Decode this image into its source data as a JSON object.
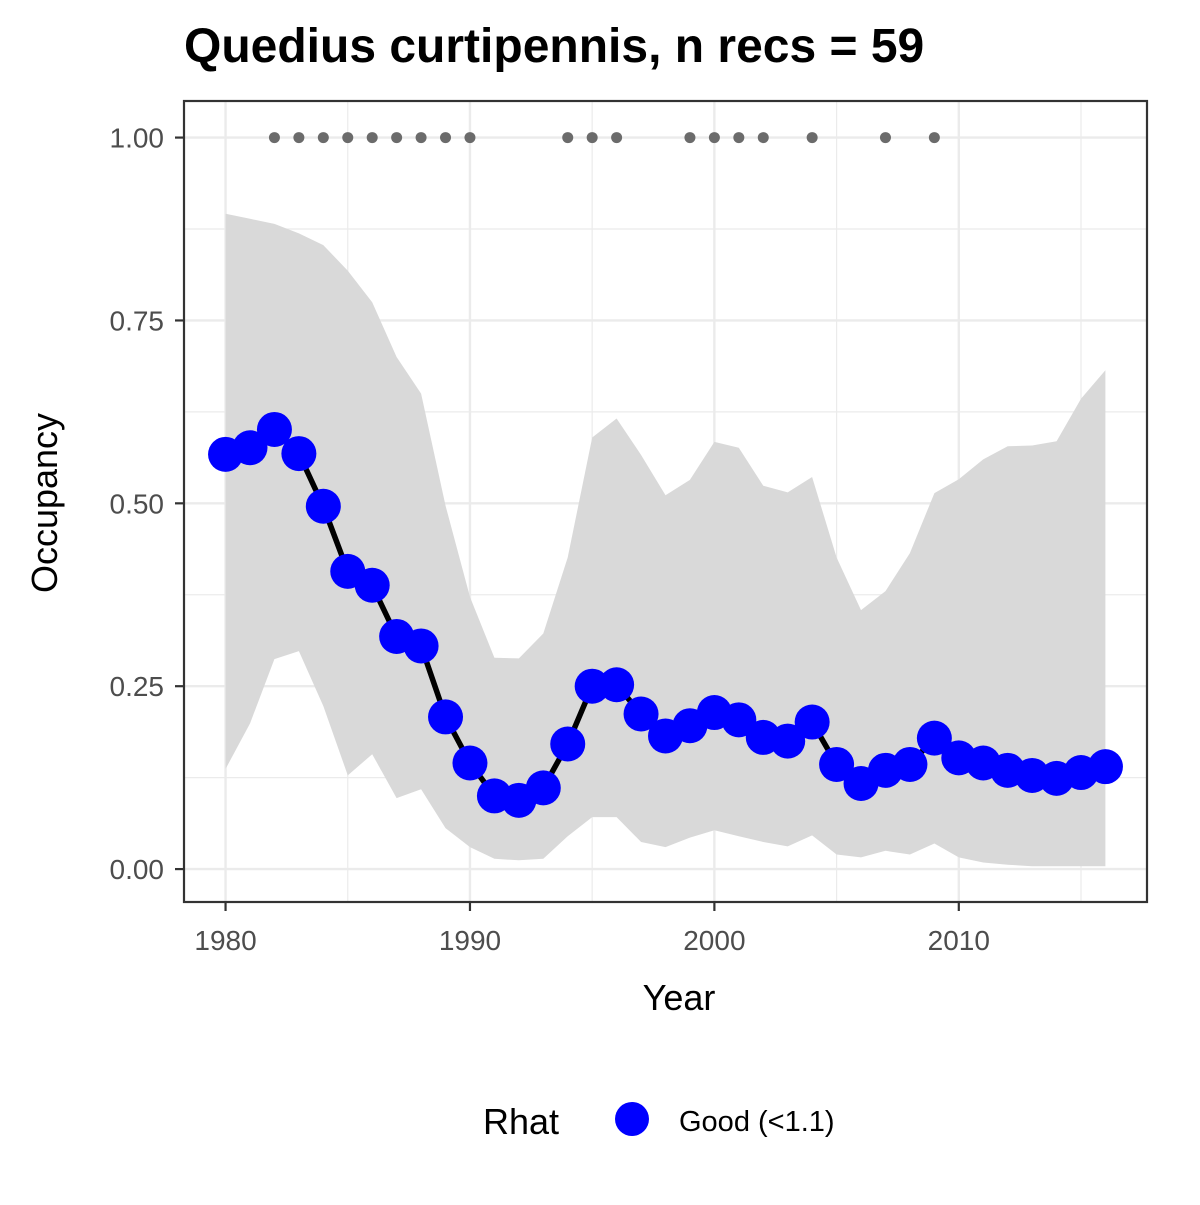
{
  "chart_data": {
    "type": "line",
    "title": "Quedius curtipennis, n recs = 59",
    "xlabel": "Year",
    "ylabel": "Occupancy",
    "xlim": [
      1978.3,
      2017.7
    ],
    "ylim": [
      -0.045,
      1.05
    ],
    "x_ticks": [
      1980,
      1990,
      2000,
      2010
    ],
    "x_tick_labels": [
      "1980",
      "1990",
      "2000",
      "2010"
    ],
    "y_ticks": [
      0,
      0.25,
      0.5,
      0.75,
      1.0
    ],
    "y_tick_labels": [
      "0.00",
      "0.25",
      "0.50",
      "0.75",
      "1.00"
    ],
    "grid": true,
    "colors": {
      "points": "#0000ff",
      "line": "#000000",
      "ribbon": "#d9d9d9",
      "record_dots": "#6b6b6b",
      "grid": "#ebebeb",
      "panel_border": "#333333"
    },
    "series": [
      {
        "x": [
          1980,
          1981,
          1982,
          1983,
          1984,
          1985,
          1986,
          1987,
          1988,
          1989,
          1990,
          1991,
          1992,
          1993,
          1994,
          1995,
          1996,
          1997,
          1998,
          1999,
          2000,
          2001,
          2002,
          2003,
          2004,
          2005,
          2006,
          2007,
          2008,
          2009,
          2010,
          2011,
          2012,
          2013,
          2014,
          2015,
          2016
        ],
        "y": [
          0.567,
          0.576,
          0.601,
          0.568,
          0.496,
          0.407,
          0.388,
          0.318,
          0.305,
          0.208,
          0.145,
          0.1,
          0.094,
          0.111,
          0.171,
          0.25,
          0.252,
          0.212,
          0.182,
          0.196,
          0.214,
          0.204,
          0.18,
          0.175,
          0.201,
          0.143,
          0.117,
          0.135,
          0.143,
          0.179,
          0.152,
          0.145,
          0.135,
          0.128,
          0.124,
          0.132,
          0.14
        ],
        "lower": [
          0.137,
          0.199,
          0.287,
          0.298,
          0.223,
          0.128,
          0.157,
          0.097,
          0.109,
          0.056,
          0.03,
          0.014,
          0.012,
          0.014,
          0.045,
          0.071,
          0.071,
          0.037,
          0.03,
          0.043,
          0.053,
          0.045,
          0.037,
          0.031,
          0.046,
          0.02,
          0.016,
          0.025,
          0.02,
          0.035,
          0.016,
          0.009,
          0.006,
          0.004,
          0.004,
          0.004,
          0.004
        ],
        "upper": [
          0.896,
          0.889,
          0.882,
          0.869,
          0.853,
          0.818,
          0.775,
          0.7,
          0.65,
          0.497,
          0.372,
          0.289,
          0.288,
          0.322,
          0.426,
          0.59,
          0.616,
          0.566,
          0.511,
          0.532,
          0.584,
          0.576,
          0.524,
          0.515,
          0.536,
          0.426,
          0.354,
          0.38,
          0.432,
          0.514,
          0.533,
          0.56,
          0.578,
          0.579,
          0.585,
          0.643,
          0.682
        ]
      }
    ],
    "record_years": [
      1982,
      1983,
      1984,
      1985,
      1986,
      1987,
      1988,
      1989,
      1990,
      1994,
      1995,
      1996,
      1999,
      2000,
      2001,
      2002,
      2004,
      2007,
      2009
    ],
    "record_y": 1.0,
    "legend": {
      "title": "Rhat",
      "entries": [
        "Good (<1.1)"
      ],
      "placement": "bottom"
    }
  }
}
